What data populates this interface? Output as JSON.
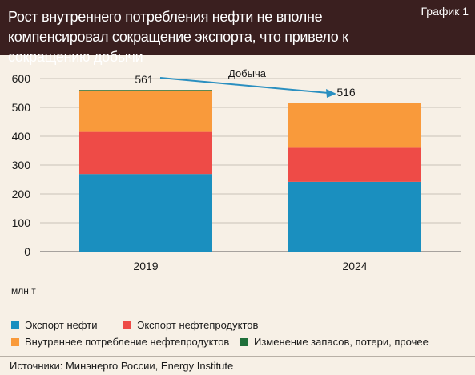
{
  "header": {
    "title": "Рост внутреннего потребления нефти не вполне компенсировал сокращение экспорта, что привело к сокращению добычи",
    "chart_label": "График 1"
  },
  "unit_label": "млн т",
  "source": "Источники: Минэнерго России, Energy Institute",
  "colors": {
    "header_bg": "#3a1f1f",
    "page_bg": "#f7f0e6",
    "export_oil": "#1a8fbf",
    "export_products": "#ee4b47",
    "domestic": "#f99a3b",
    "other": "#1f6f3a",
    "arrow": "#2a8fc0"
  },
  "chart_data": {
    "type": "bar",
    "stacked": true,
    "categories": [
      "2019",
      "2024"
    ],
    "series": [
      {
        "name": "Экспорт нефти",
        "values": [
          269,
          242
        ],
        "color": "#1a8fbf"
      },
      {
        "name": "Экспорт нефтепродуктов",
        "values": [
          146,
          118
        ],
        "color": "#ee4b47"
      },
      {
        "name": "Внутреннее потребление нефтепродуктов",
        "values": [
          144,
          156
        ],
        "color": "#f99a3b"
      },
      {
        "name": "Изменение запасов, потери, прочее",
        "values": [
          2,
          0
        ],
        "color": "#1f6f3a"
      }
    ],
    "totals": [
      "561",
      "516"
    ],
    "annotation": "Добыча",
    "ylim": [
      0,
      600
    ],
    "yticks": [
      "0",
      "100",
      "200",
      "300",
      "400",
      "500",
      "600"
    ],
    "grid": true,
    "legend_position": "bottom"
  }
}
